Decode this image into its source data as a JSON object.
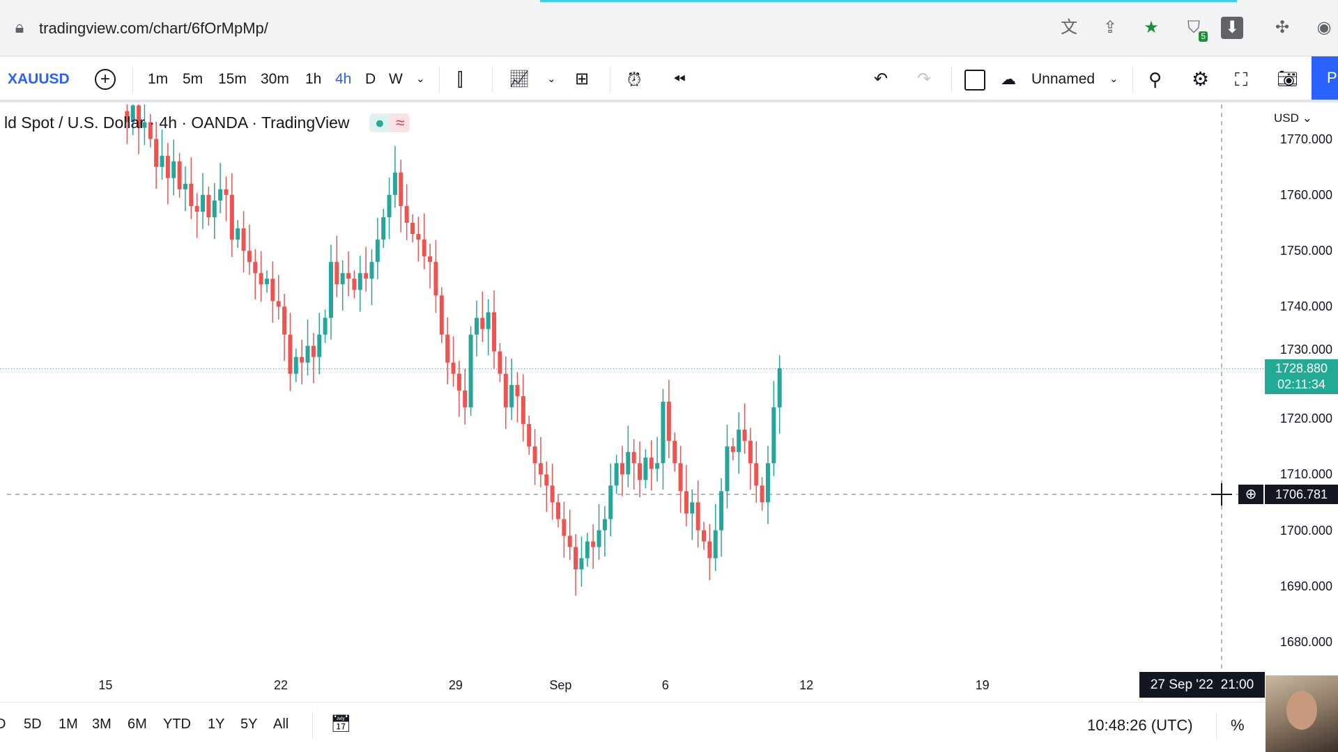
{
  "browser": {
    "url": "tradingview.com/chart/6fOrMpMp/",
    "icons": [
      "lock-icon",
      "translate-icon",
      "share-icon",
      "bookmark-star-icon",
      "extension-shield-icon",
      "download-icon",
      "puzzle-icon",
      "profile-icon"
    ],
    "extension_badge": "5"
  },
  "toolbar": {
    "symbol": "XAUUSD",
    "intervals": [
      "1m",
      "5m",
      "15m",
      "30m",
      "1h",
      "4h",
      "D",
      "W"
    ],
    "active_interval": "4h",
    "layout_name": "Unnamed",
    "publish_label": "P"
  },
  "legend": {
    "title": "ld Spot / U.S. Dollar · 4h · OANDA · TradingView",
    "market_icon": "≈"
  },
  "colors": {
    "up": "#26a69a",
    "down": "#ef5350",
    "accent": "#2962ff",
    "last_price": "#22ab94",
    "crosshair_label": "#131722"
  },
  "price_axis": {
    "currency": "USD",
    "ticks": [
      "1770.000",
      "1760.000",
      "1750.000",
      "1740.000",
      "1730.000",
      "1720.000",
      "1710.000",
      "1700.000",
      "1690.000",
      "1680.000"
    ],
    "last_price": "1728.880",
    "countdown": "02:11:34",
    "crosshair_price": "1706.781"
  },
  "time_axis": {
    "ticks": [
      {
        "label": "15",
        "i": -2.7
      },
      {
        "label": "22",
        "i": 27.4
      },
      {
        "label": "29",
        "i": 57.4
      },
      {
        "label": "Sep",
        "i": 75.4
      },
      {
        "label": "6",
        "i": 93.4
      },
      {
        "label": "12",
        "i": 117.6
      },
      {
        "label": "19",
        "i": 147.8
      }
    ],
    "crosshair_date": "27 Sep '22",
    "crosshair_time": "21:00"
  },
  "chart_data": {
    "type": "candlestick",
    "ylim": [
      1675,
      1778
    ],
    "closes": [
      1775,
      1773,
      1776,
      1772,
      1773,
      1770,
      1765,
      1767,
      1763,
      1766,
      1761,
      1762,
      1758,
      1757,
      1760,
      1756,
      1759,
      1761,
      1760,
      1752,
      1754,
      1750,
      1748,
      1746,
      1744,
      1745,
      1741,
      1740,
      1735,
      1728,
      1731,
      1730,
      1733,
      1731,
      1735,
      1738,
      1748,
      1744,
      1746,
      1745,
      1743,
      1746,
      1745,
      1748,
      1752,
      1756,
      1760,
      1764,
      1758,
      1755,
      1753,
      1752,
      1749,
      1748,
      1742,
      1735,
      1730,
      1728,
      1725,
      1722,
      1735,
      1738,
      1736,
      1739,
      1732,
      1728,
      1722,
      1726,
      1724,
      1719,
      1715,
      1712,
      1710,
      1708,
      1705,
      1702,
      1699,
      1697,
      1693,
      1695,
      1698,
      1697,
      1700,
      1702,
      1708,
      1712,
      1710,
      1714,
      1712,
      1709,
      1713,
      1711,
      1712,
      1723,
      1716,
      1712,
      1707,
      1703,
      1705,
      1700,
      1698,
      1695,
      1700,
      1707,
      1715,
      1714,
      1718,
      1716,
      1712,
      1708,
      1705,
      1712,
      1722,
      1729
    ]
  },
  "bottom": {
    "ranges": [
      "D",
      "5D",
      "1M",
      "3M",
      "6M",
      "YTD",
      "1Y",
      "5Y",
      "All"
    ],
    "clock": "10:48:26 (UTC)",
    "percent": "%"
  }
}
